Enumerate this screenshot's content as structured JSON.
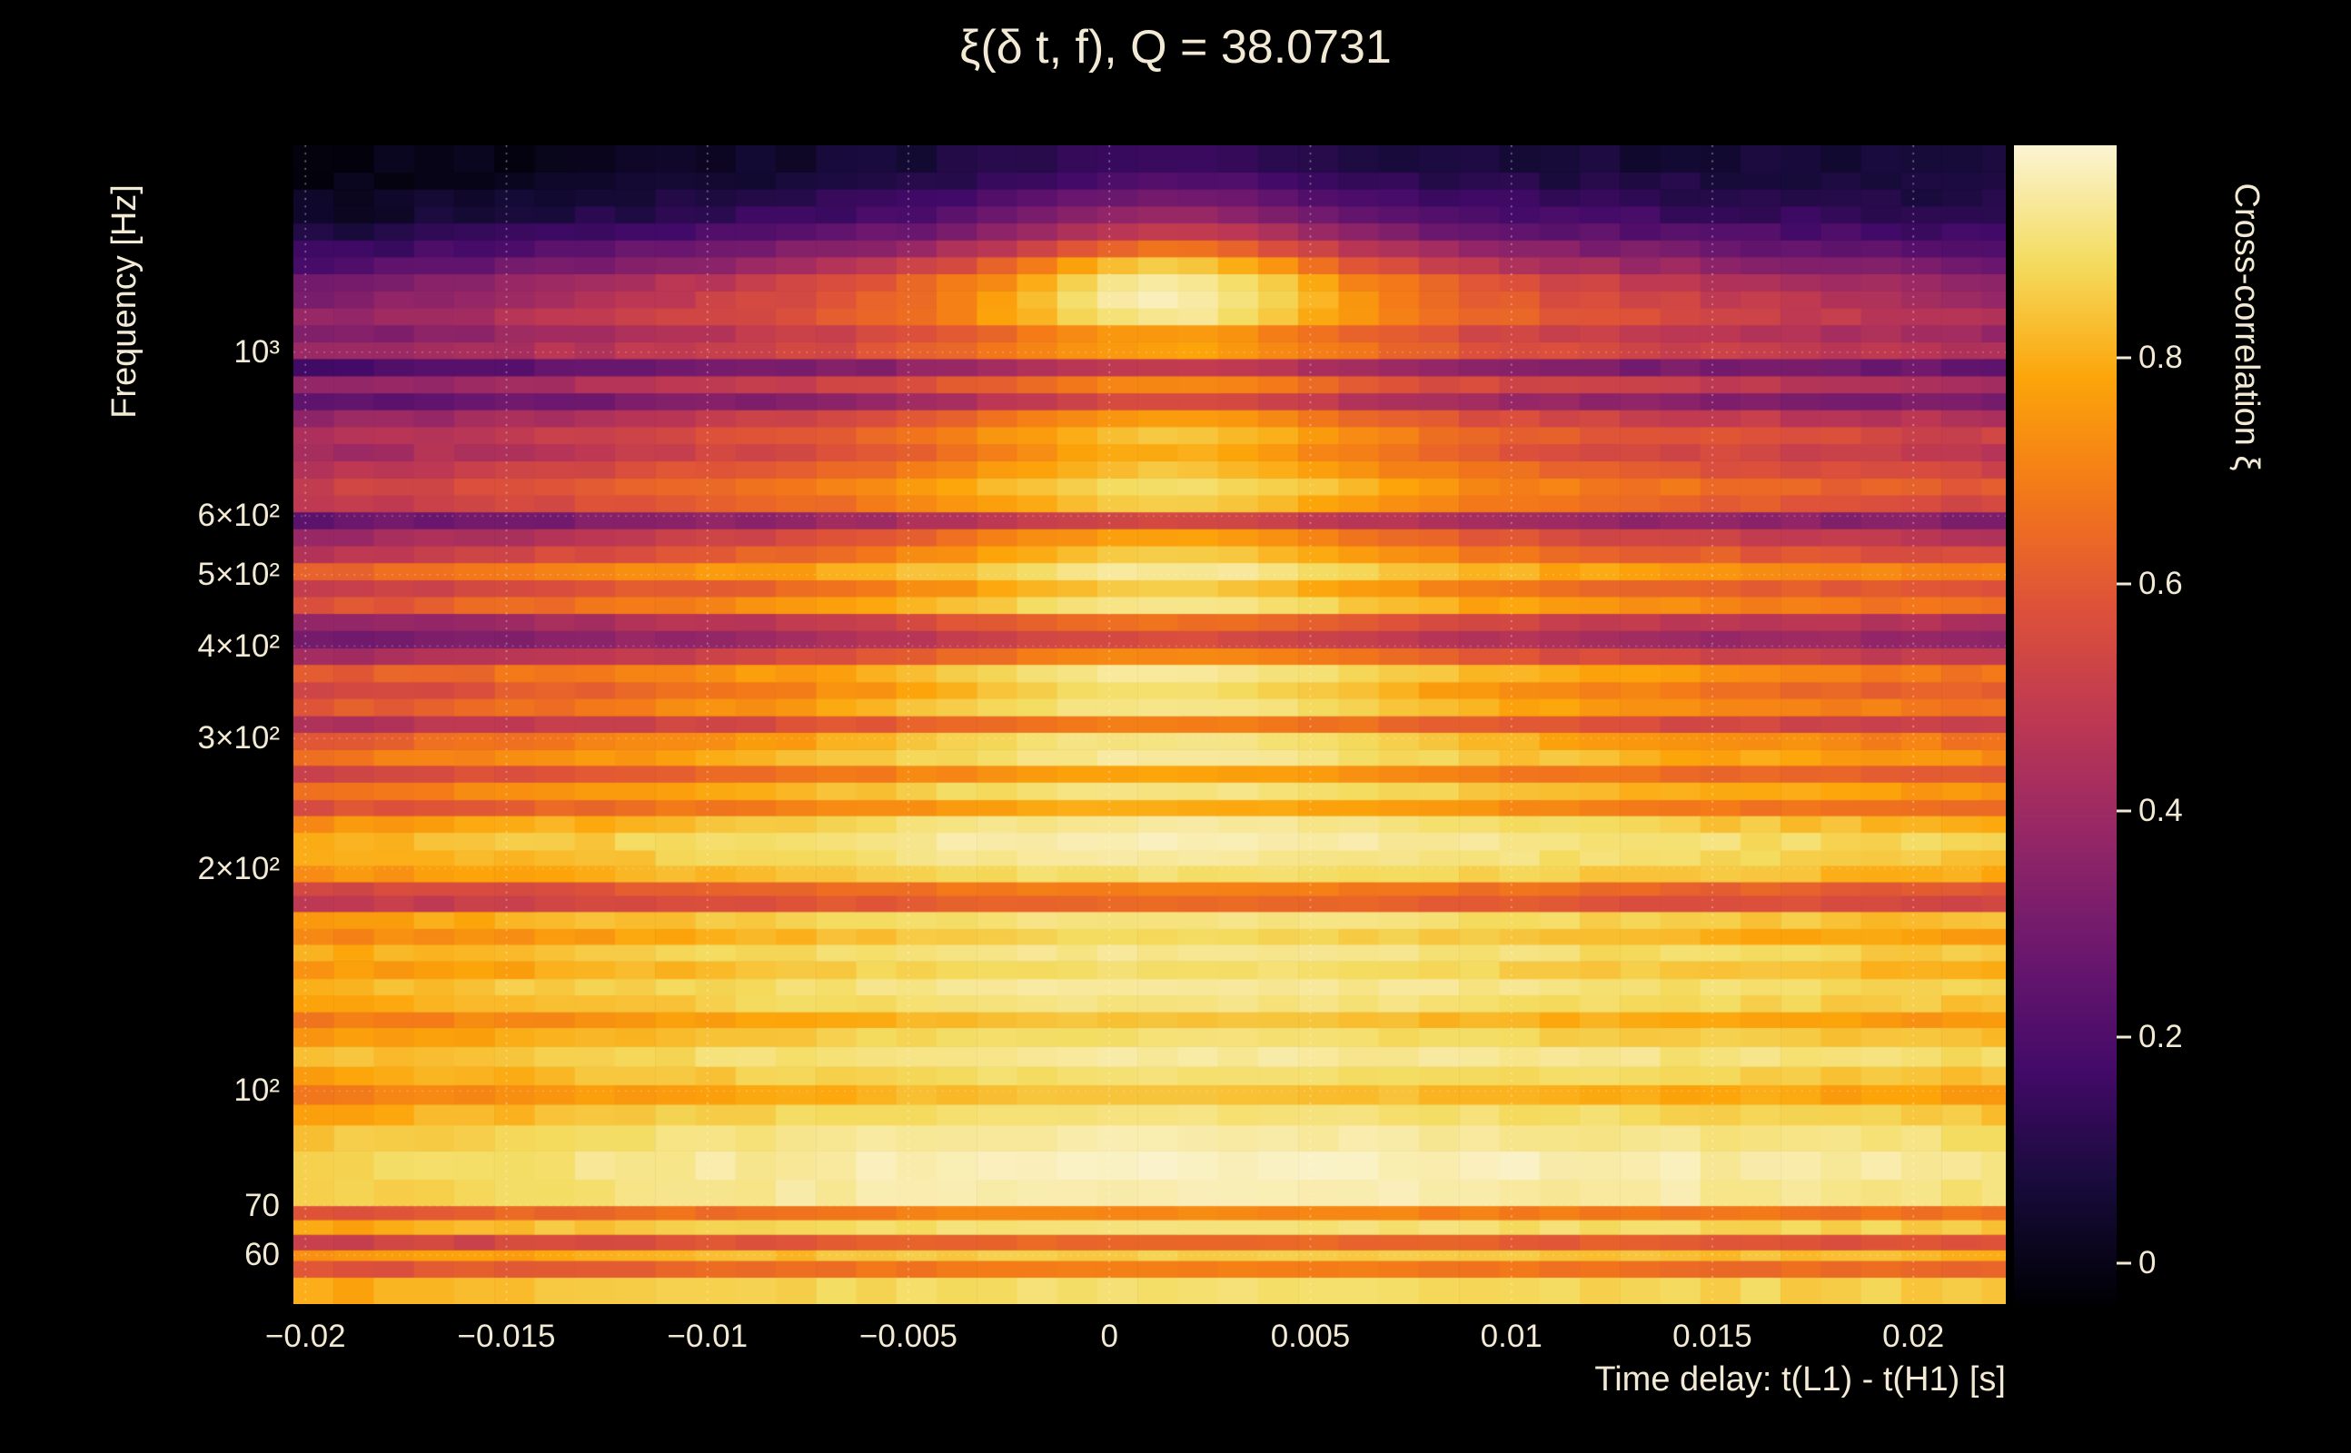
{
  "chart_data": {
    "type": "heatmap",
    "title": "ξ(δ t, f), Q = 38.0731",
    "q_value": 38.0731,
    "xlabel": "Time delay: t(L1) - t(H1) [s]",
    "ylabel": "Frequency [Hz]",
    "colorbar_label": "Cross-correlation ξ",
    "x_range": [
      -0.0203,
      0.0223
    ],
    "x_bin_width": 0.001,
    "y_range_hz": [
      51.5,
      1905
    ],
    "y_scale": "log",
    "grid": "dotted",
    "x_ticks": [
      {
        "value": -0.02,
        "label": "−0.02"
      },
      {
        "value": -0.015,
        "label": "−0.015"
      },
      {
        "value": -0.01,
        "label": "−0.01"
      },
      {
        "value": -0.005,
        "label": "−0.005"
      },
      {
        "value": 0,
        "label": "0"
      },
      {
        "value": 0.005,
        "label": "0.005"
      },
      {
        "value": 0.01,
        "label": "0.01"
      },
      {
        "value": 0.015,
        "label": "0.015"
      },
      {
        "value": 0.02,
        "label": "0.02"
      }
    ],
    "y_ticks": [
      {
        "value": 1000,
        "label": "10³"
      },
      {
        "value": 600,
        "label": "6×10²"
      },
      {
        "value": 500,
        "label": "5×10²"
      },
      {
        "value": 400,
        "label": "4×10²"
      },
      {
        "value": 300,
        "label": "3×10²"
      },
      {
        "value": 200,
        "label": "2×10²"
      },
      {
        "value": 100,
        "label": "10²"
      },
      {
        "value": 70,
        "label": "70"
      },
      {
        "value": 60,
        "label": "60"
      }
    ],
    "colorbar_ticks": [
      {
        "value": 0,
        "label": "0"
      },
      {
        "value": 0.2,
        "label": "0.2"
      },
      {
        "value": 0.4,
        "label": "0.4"
      },
      {
        "value": 0.6,
        "label": "0.6"
      },
      {
        "value": 0.8,
        "label": "0.8"
      }
    ],
    "colorbar_range": [
      -0.036,
      0.988
    ],
    "colormap": "inferno",
    "colormap_stops": [
      [
        0.0,
        "#000004"
      ],
      [
        0.1,
        "#160b39"
      ],
      [
        0.2,
        "#420a68"
      ],
      [
        0.3,
        "#6a176e"
      ],
      [
        0.4,
        "#932667"
      ],
      [
        0.5,
        "#bc3754"
      ],
      [
        0.6,
        "#dd513a"
      ],
      [
        0.7,
        "#f37819"
      ],
      [
        0.8,
        "#fca50a"
      ],
      [
        0.9,
        "#f4dc60"
      ],
      [
        1.0,
        "#fbf4d3"
      ]
    ],
    "center_delay_s": 0.0015,
    "rows_legend": "Each row: [freq_lo_hz, xi_at_edges, xi_at_midband, xi_peak_at_center, center_width_s]; row spans to next row's freq_lo",
    "rows": [
      [
        51.5,
        0.8,
        0.87,
        0.9,
        0.006
      ],
      [
        56,
        0.58,
        0.64,
        0.7,
        0.006
      ],
      [
        59,
        0.76,
        0.83,
        0.86,
        0.006
      ],
      [
        61,
        0.52,
        0.58,
        0.64,
        0.006
      ],
      [
        64,
        0.8,
        0.88,
        0.91,
        0.006
      ],
      [
        67,
        0.6,
        0.66,
        0.72,
        0.006
      ],
      [
        70,
        0.86,
        0.94,
        0.96,
        0.007
      ],
      [
        76,
        0.88,
        0.95,
        0.97,
        0.007
      ],
      [
        83,
        0.84,
        0.92,
        0.95,
        0.007
      ],
      [
        90,
        0.78,
        0.87,
        0.91,
        0.007
      ],
      [
        96,
        0.7,
        0.79,
        0.84,
        0.006
      ],
      [
        102,
        0.78,
        0.87,
        0.9,
        0.006
      ],
      [
        108,
        0.83,
        0.91,
        0.94,
        0.006
      ],
      [
        115,
        0.76,
        0.85,
        0.9,
        0.006
      ],
      [
        122,
        0.68,
        0.77,
        0.84,
        0.006
      ],
      [
        128,
        0.78,
        0.87,
        0.92,
        0.006
      ],
      [
        135,
        0.82,
        0.89,
        0.94,
        0.006
      ],
      [
        142,
        0.75,
        0.83,
        0.9,
        0.006
      ],
      [
        150,
        0.8,
        0.87,
        0.93,
        0.006
      ],
      [
        158,
        0.7,
        0.79,
        0.88,
        0.006
      ],
      [
        166,
        0.76,
        0.85,
        0.92,
        0.006
      ],
      [
        175,
        0.48,
        0.55,
        0.64,
        0.006
      ],
      [
        184,
        0.53,
        0.61,
        0.7,
        0.006
      ],
      [
        192,
        0.73,
        0.83,
        0.9,
        0.006
      ],
      [
        202,
        0.78,
        0.87,
        0.94,
        0.006
      ],
      [
        212,
        0.8,
        0.89,
        0.96,
        0.006
      ],
      [
        224,
        0.74,
        0.85,
        0.94,
        0.005
      ],
      [
        236,
        0.58,
        0.67,
        0.8,
        0.005
      ],
      [
        248,
        0.68,
        0.79,
        0.92,
        0.005
      ],
      [
        262,
        0.53,
        0.61,
        0.78,
        0.005
      ],
      [
        276,
        0.66,
        0.78,
        0.94,
        0.005
      ],
      [
        290,
        0.6,
        0.72,
        0.92,
        0.005
      ],
      [
        306,
        0.44,
        0.51,
        0.7,
        0.005
      ],
      [
        322,
        0.58,
        0.7,
        0.92,
        0.005
      ],
      [
        340,
        0.53,
        0.64,
        0.9,
        0.0045
      ],
      [
        358,
        0.6,
        0.72,
        0.94,
        0.0045
      ],
      [
        378,
        0.42,
        0.5,
        0.72,
        0.0045
      ],
      [
        398,
        0.3,
        0.36,
        0.56,
        0.0045
      ],
      [
        420,
        0.36,
        0.44,
        0.66,
        0.0045
      ],
      [
        443,
        0.58,
        0.68,
        0.92,
        0.0045
      ],
      [
        467,
        0.5,
        0.6,
        0.86,
        0.004
      ],
      [
        492,
        0.64,
        0.74,
        0.94,
        0.004
      ],
      [
        519,
        0.48,
        0.58,
        0.86,
        0.004
      ],
      [
        547,
        0.4,
        0.48,
        0.78,
        0.004
      ],
      [
        577,
        0.27,
        0.33,
        0.55,
        0.004
      ],
      [
        608,
        0.48,
        0.58,
        0.86,
        0.004
      ],
      [
        641,
        0.53,
        0.62,
        0.9,
        0.004
      ],
      [
        676,
        0.46,
        0.56,
        0.84,
        0.004
      ],
      [
        713,
        0.42,
        0.5,
        0.8,
        0.0038
      ],
      [
        752,
        0.46,
        0.54,
        0.84,
        0.0038
      ],
      [
        793,
        0.38,
        0.46,
        0.76,
        0.0038
      ],
      [
        836,
        0.25,
        0.31,
        0.56,
        0.0036
      ],
      [
        881,
        0.38,
        0.46,
        0.72,
        0.0036
      ],
      [
        929,
        0.21,
        0.27,
        0.5,
        0.0036
      ],
      [
        980,
        0.4,
        0.5,
        0.78,
        0.0034
      ],
      [
        1033,
        0.34,
        0.46,
        0.76,
        0.0034
      ],
      [
        1089,
        0.38,
        0.52,
        0.93,
        0.0034
      ],
      [
        1148,
        0.34,
        0.5,
        0.96,
        0.0032
      ],
      [
        1211,
        0.3,
        0.46,
        0.94,
        0.0032
      ],
      [
        1277,
        0.23,
        0.35,
        0.85,
        0.003
      ],
      [
        1346,
        0.17,
        0.27,
        0.66,
        0.003
      ],
      [
        1419,
        0.11,
        0.19,
        0.5,
        0.003
      ],
      [
        1496,
        0.07,
        0.13,
        0.38,
        0.003
      ],
      [
        1577,
        0.05,
        0.09,
        0.29,
        0.003
      ],
      [
        1663,
        0.03,
        0.06,
        0.21,
        0.003
      ],
      [
        1753,
        0.02,
        0.04,
        0.15,
        0.003
      ]
    ],
    "colors": {
      "background": "#000000",
      "text": "#f2ead4",
      "gridline": "#ffffff"
    }
  }
}
